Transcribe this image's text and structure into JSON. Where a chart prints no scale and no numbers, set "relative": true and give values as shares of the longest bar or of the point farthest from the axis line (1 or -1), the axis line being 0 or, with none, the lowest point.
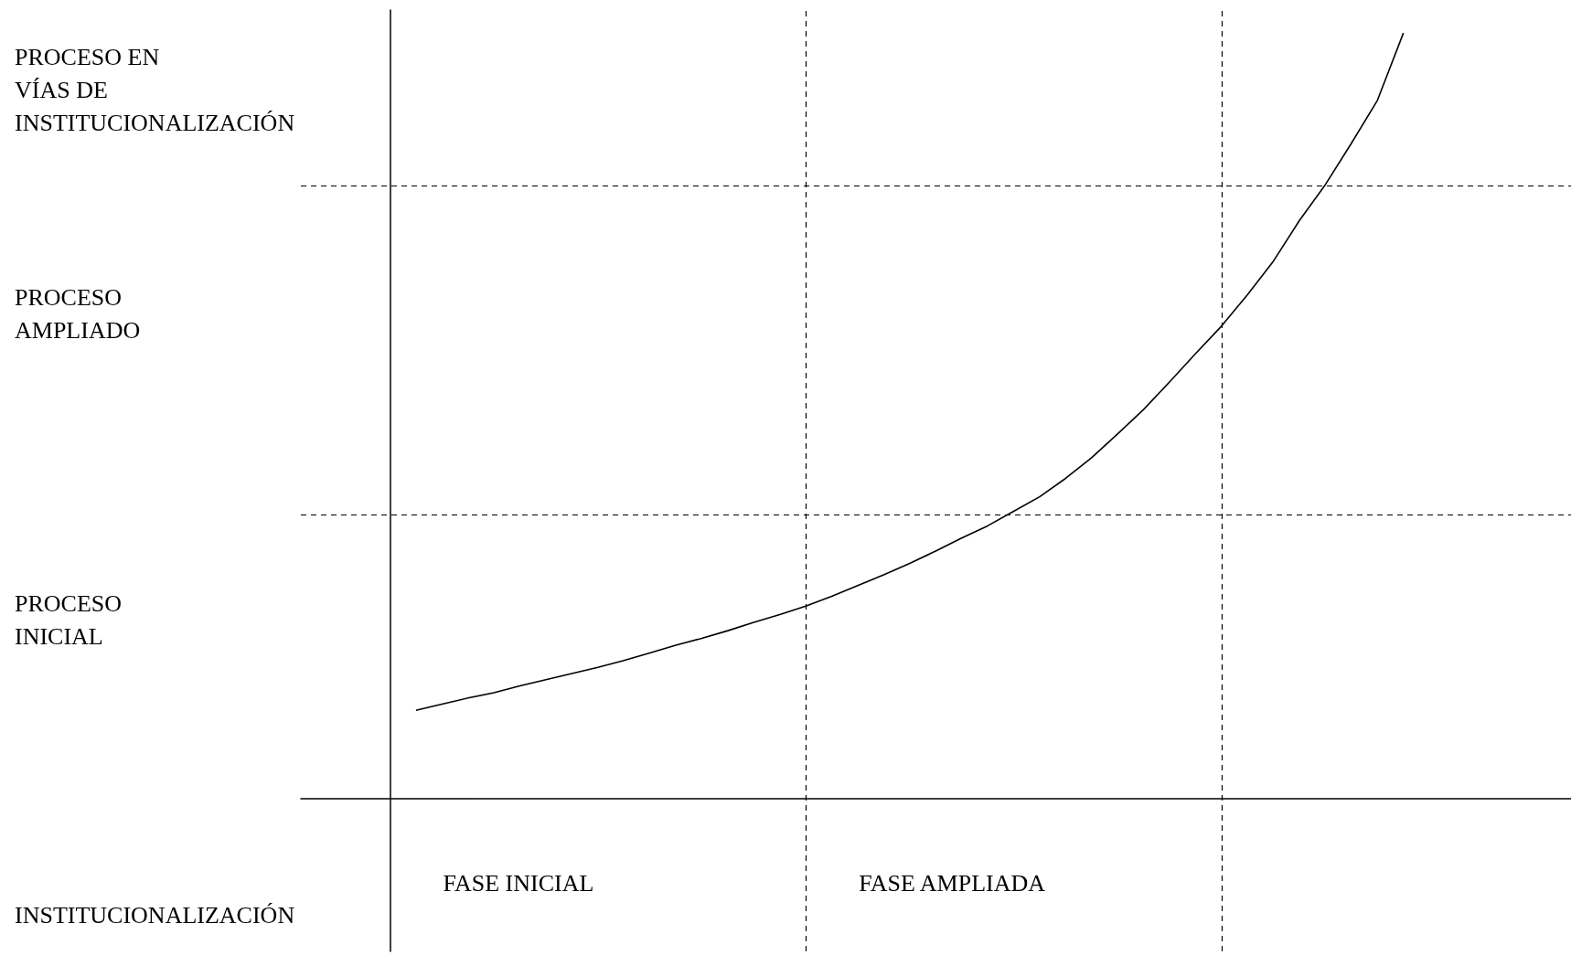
{
  "chart_data": {
    "type": "line",
    "relative": true,
    "categories": [
      null,
      null,
      null,
      null,
      null,
      null,
      null,
      null,
      null,
      null,
      null,
      null,
      null,
      null,
      null,
      null,
      null,
      null,
      null,
      null,
      null,
      null,
      null,
      null,
      null,
      null,
      null,
      null,
      null,
      null,
      null,
      null,
      null,
      null,
      null,
      null,
      null,
      null,
      null
    ],
    "values": [
      0.115,
      0.123,
      0.131,
      0.138,
      0.147,
      0.155,
      0.163,
      0.171,
      0.18,
      0.19,
      0.2,
      0.209,
      0.219,
      0.23,
      0.24,
      0.251,
      0.264,
      0.278,
      0.292,
      0.307,
      0.323,
      0.34,
      0.356,
      0.375,
      0.394,
      0.418,
      0.445,
      0.476,
      0.508,
      0.544,
      0.581,
      0.617,
      0.658,
      0.702,
      0.755,
      0.802,
      0.856,
      0.912,
      1.0
    ],
    "color": "#000000",
    "marker": "none",
    "line_style": "solid",
    "annotations": [
      "PROCESO EN VÍAS DE INSTITUCIONALIZACIÓN",
      "PROCESO AMPLIADO",
      "PROCESO INICIAL",
      "FASE INICIAL",
      "FASE AMPLIADA",
      "INSTITUCIONALIZACIÓN"
    ],
    "ref_lines": [
      {
        "axis": "y",
        "value": 0.372,
        "line_style": "dashed"
      },
      {
        "axis": "y",
        "value": 0.8,
        "line_style": "dashed"
      }
    ]
  }
}
